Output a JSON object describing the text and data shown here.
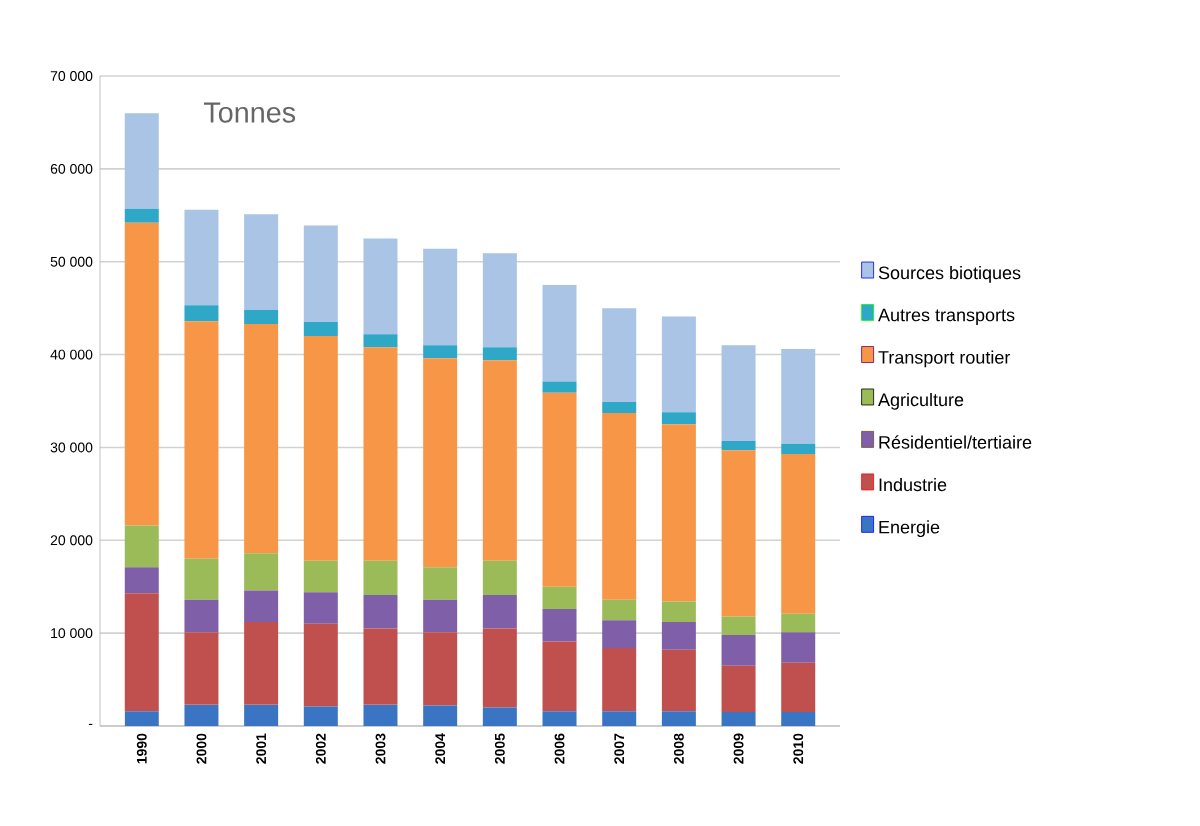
{
  "chart_data": {
    "type": "bar",
    "stacked": true,
    "title": "Tonnes",
    "categories": [
      "1990",
      "2000",
      "2001",
      "2002",
      "2003",
      "2004",
      "2005",
      "2006",
      "2007",
      "2008",
      "2009",
      "2010"
    ],
    "series": [
      {
        "name": "Energie",
        "color": "#3a75c4",
        "values": [
          1600,
          2300,
          2300,
          2100,
          2300,
          2200,
          2000,
          1600,
          1600,
          1600,
          1500,
          1500
        ]
      },
      {
        "name": "Industrie",
        "color": "#c0504d",
        "values": [
          12700,
          7800,
          8900,
          8900,
          8200,
          7900,
          8500,
          7500,
          6800,
          6600,
          5000,
          5300
        ]
      },
      {
        "name": "Résidentiel/tertiaire",
        "color": "#7f5fa8",
        "values": [
          2800,
          3500,
          3400,
          3400,
          3600,
          3500,
          3600,
          3500,
          3000,
          3000,
          3300,
          3300
        ]
      },
      {
        "name": "Agriculture",
        "color": "#9bbb59",
        "values": [
          4500,
          4400,
          4000,
          3400,
          3700,
          3500,
          3700,
          2400,
          2200,
          2200,
          2000,
          2000
        ]
      },
      {
        "name": "Transport routier",
        "color": "#f79646",
        "values": [
          32600,
          25600,
          24700,
          24200,
          23000,
          22500,
          21600,
          20900,
          20100,
          19100,
          17900,
          17200
        ]
      },
      {
        "name": "Autres transports",
        "color": "#2fa8c8",
        "values": [
          1500,
          1700,
          1500,
          1500,
          1400,
          1400,
          1400,
          1200,
          1200,
          1300,
          1000,
          1100
        ]
      },
      {
        "name": "Sources biotiques",
        "color": "#a9c4e4",
        "values": [
          10300,
          10300,
          10300,
          10400,
          10300,
          10400,
          10100,
          10400,
          10100,
          10300,
          10300,
          10200
        ]
      }
    ],
    "ylim": [
      0,
      70000
    ],
    "yticks": [
      {
        "value": 0,
        "label": "-"
      },
      {
        "value": 10000,
        "label": "10 000"
      },
      {
        "value": 20000,
        "label": "20 000"
      },
      {
        "value": 30000,
        "label": "30 000"
      },
      {
        "value": 40000,
        "label": "40 000"
      },
      {
        "value": 50000,
        "label": "50 000"
      },
      {
        "value": 60000,
        "label": "60 000"
      },
      {
        "value": 70000,
        "label": "70 000"
      }
    ],
    "grid": "y",
    "legend": "right"
  }
}
